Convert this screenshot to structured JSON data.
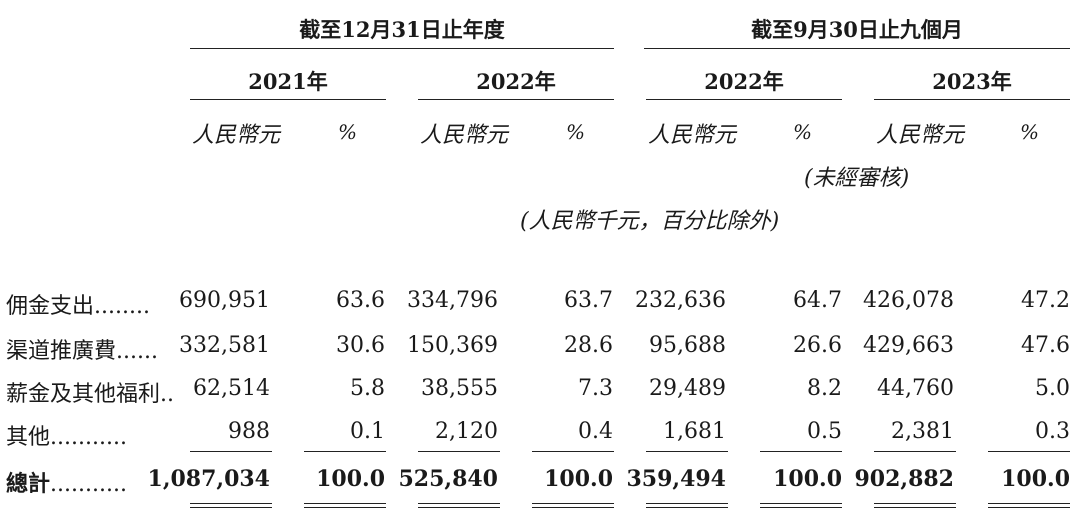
{
  "header": {
    "group_year": "截至12月31日止年度",
    "group_nine": "截至9月30日止九個月",
    "years": [
      "2021年",
      "2022年",
      "2022年",
      "2023年"
    ],
    "currency": "人民幣元",
    "percent": "%",
    "unaudited": "(未經審核)",
    "unit_note": "(人民幣千元，百分比除外)"
  },
  "rows": [
    {
      "label": "佣金支出",
      "leader": "........",
      "values": [
        "690,951",
        "63.6",
        "334,796",
        "63.7",
        "232,636",
        "64.7",
        "426,078",
        "47.2"
      ]
    },
    {
      "label": "渠道推廣費",
      "leader": "......",
      "values": [
        "332,581",
        "30.6",
        "150,369",
        "28.6",
        "95,688",
        "26.6",
        "429,663",
        "47.6"
      ]
    },
    {
      "label": "薪金及其他福利",
      "leader": "..",
      "values": [
        "62,514",
        "5.8",
        "38,555",
        "7.3",
        "29,489",
        "8.2",
        "44,760",
        "5.0"
      ]
    },
    {
      "label": "其他",
      "leader": "...........",
      "values": [
        "988",
        "0.1",
        "2,120",
        "0.4",
        "1,681",
        "0.5",
        "2,381",
        "0.3"
      ]
    }
  ],
  "total": {
    "label": "總計",
    "leader": "...........",
    "values": [
      "1,087,034",
      "100.0",
      "525,840",
      "100.0",
      "359,494",
      "100.0",
      "902,882",
      "100.0"
    ]
  }
}
